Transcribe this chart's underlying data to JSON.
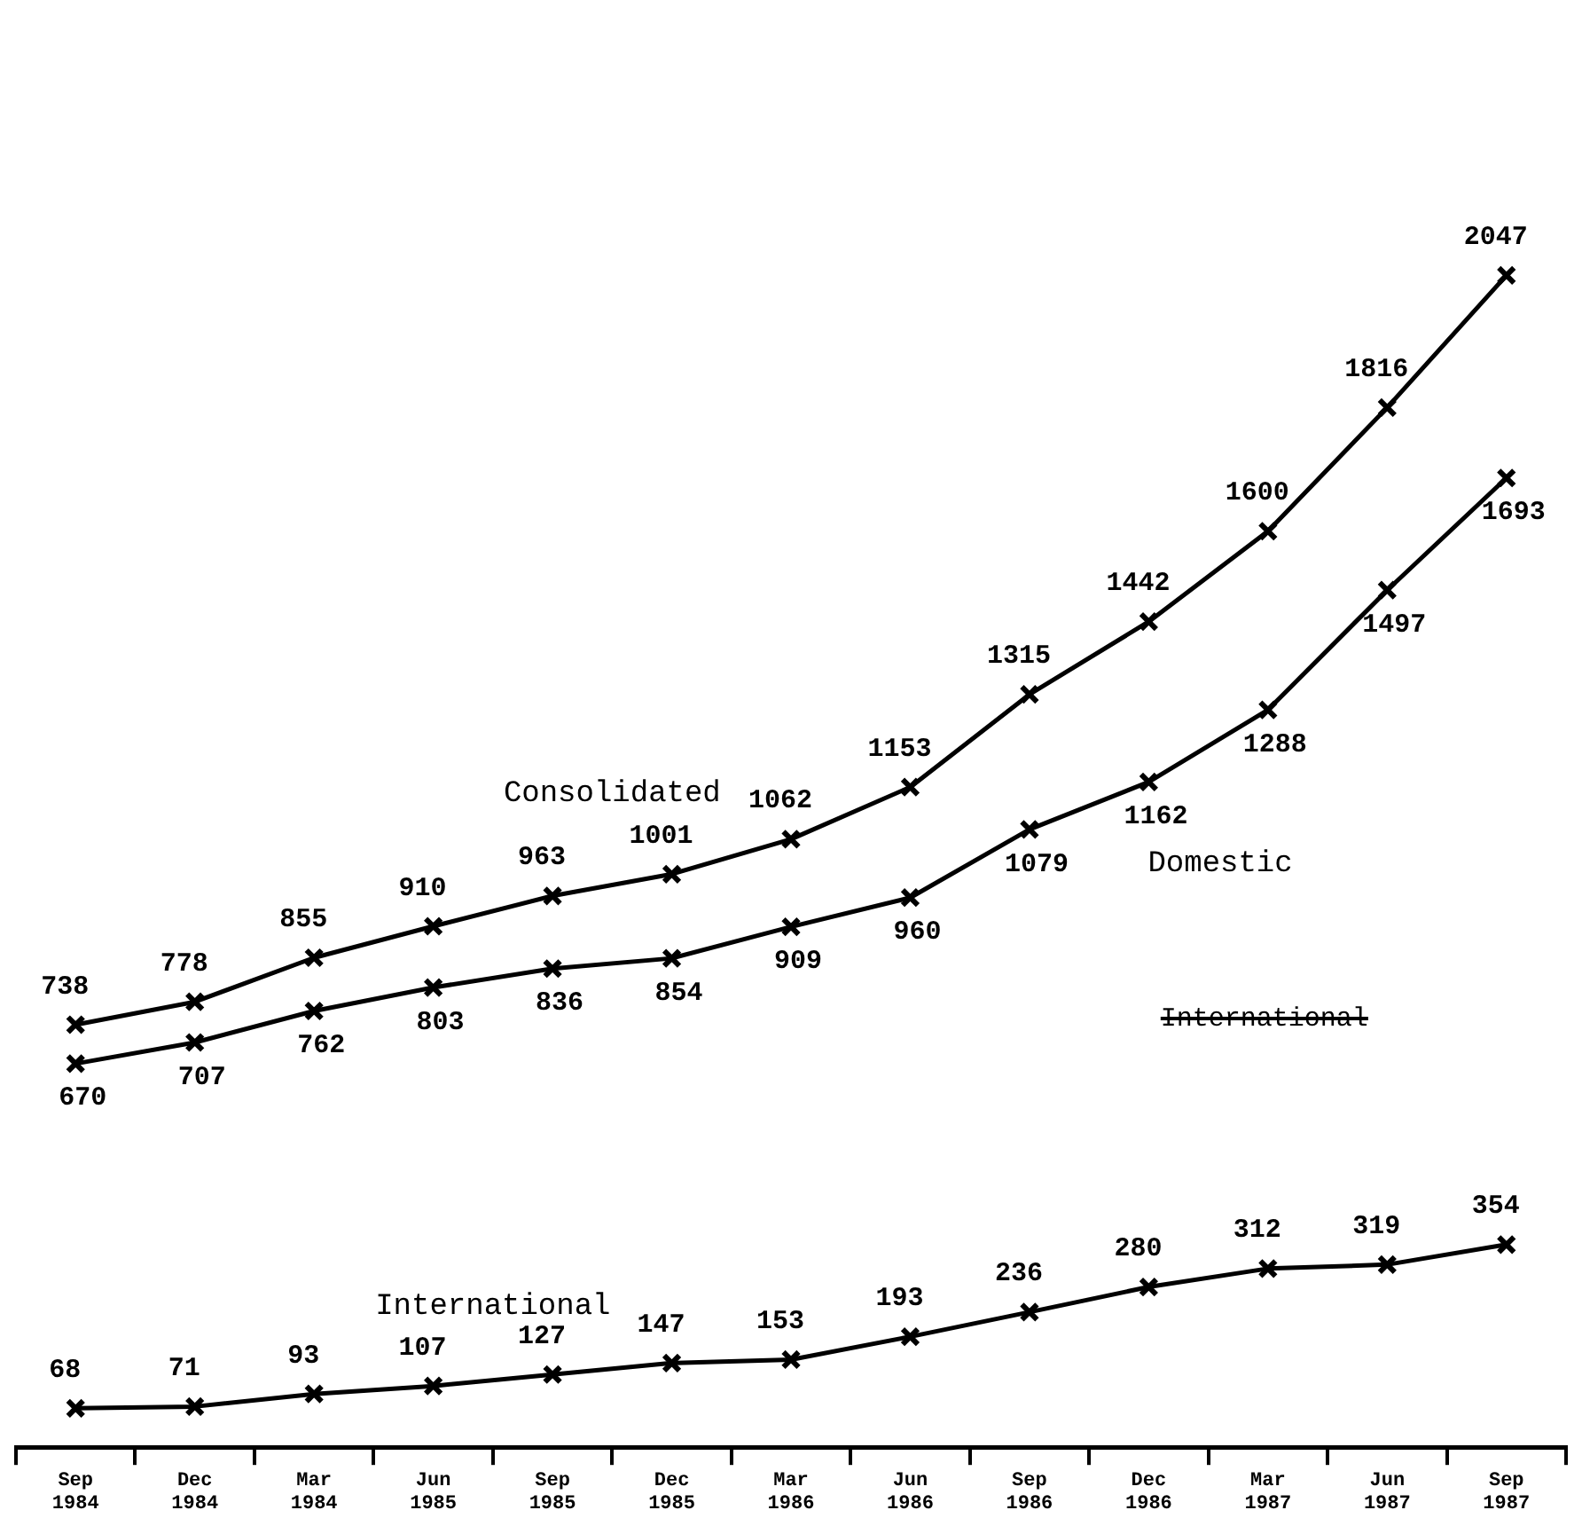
{
  "chart_data": {
    "type": "line",
    "categories": [
      "Sep 1984",
      "Dec 1984",
      "Mar 1984",
      "Jun 1985",
      "Sep 1985",
      "Dec 1985",
      "Mar 1986",
      "Jun 1986",
      "Sep 1986",
      "Dec 1986",
      "Mar 1987",
      "Jun 1987",
      "Sep 1987"
    ],
    "series": [
      {
        "name": "Consolidated",
        "color": "#000000",
        "values": [
          738,
          778,
          855,
          910,
          963,
          1001,
          1062,
          1153,
          1315,
          1442,
          1600,
          1816,
          2047
        ]
      },
      {
        "name": "Domestic",
        "color": "#000000",
        "values": [
          670,
          707,
          762,
          803,
          836,
          854,
          909,
          960,
          1079,
          1162,
          1288,
          1497,
          1693
        ]
      },
      {
        "name": "International",
        "color": "#000000",
        "values": [
          68,
          71,
          93,
          107,
          127,
          147,
          153,
          193,
          236,
          280,
          312,
          319,
          354
        ]
      }
    ],
    "annotations": [
      "International"
    ],
    "tick_labels": "x",
    "data_labels": true,
    "marker": "cross",
    "line_style": "solid",
    "grid": false,
    "legend": false
  }
}
